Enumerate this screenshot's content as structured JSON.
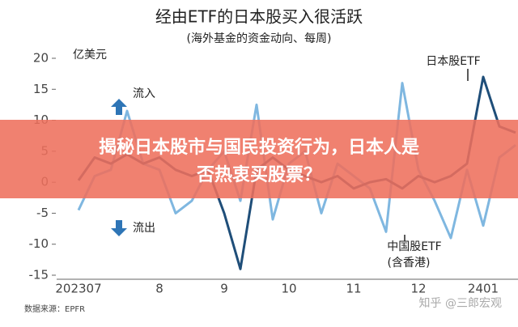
{
  "chart_data": {
    "type": "line",
    "title": "经由ETF的日本股买入很活跃",
    "subtitle": "(海外基金的资金动向、每周)",
    "y_unit": "亿美元",
    "inflow_label": "流入",
    "outflow_label": "流出",
    "source": "数据来源：EPFR",
    "categories": [
      "202307",
      null,
      null,
      null,
      null,
      "8",
      null,
      null,
      null,
      "9",
      null,
      null,
      null,
      "10",
      null,
      null,
      null,
      "11",
      null,
      null,
      null,
      "12",
      null,
      null,
      null,
      "2401",
      null,
      null
    ],
    "series": [
      {
        "name": "日本股ETF",
        "color": "#1f4e79",
        "values": [
          0.3,
          4,
          3,
          4.5,
          3,
          4,
          2,
          1,
          2,
          -5,
          -14,
          2,
          4,
          2,
          1,
          0,
          1,
          -1,
          0,
          0.5,
          -1,
          1,
          0,
          1,
          3,
          17,
          9,
          8
        ]
      },
      {
        "name": "中国股ETF",
        "sub_label": "(含香港)",
        "color": "#7fb7e0",
        "values": [
          -4.5,
          1,
          2,
          11.5,
          3,
          2,
          -5,
          -3,
          2,
          5,
          -3,
          12.5,
          -6,
          3,
          5,
          -5,
          3,
          1,
          -1,
          -8,
          16,
          2,
          -3,
          -9,
          2,
          -7,
          4,
          6
        ]
      }
    ],
    "ylim": [
      -15,
      20
    ],
    "yticks": [
      -15,
      -10,
      -5,
      0,
      5,
      10,
      15,
      20
    ],
    "grid": false
  },
  "banner": [
    "揭秘日本股市与国民投资行为，日本人是",
    "否热衷买股票？"
  ],
  "watermark": "知乎 @三郎宏观"
}
